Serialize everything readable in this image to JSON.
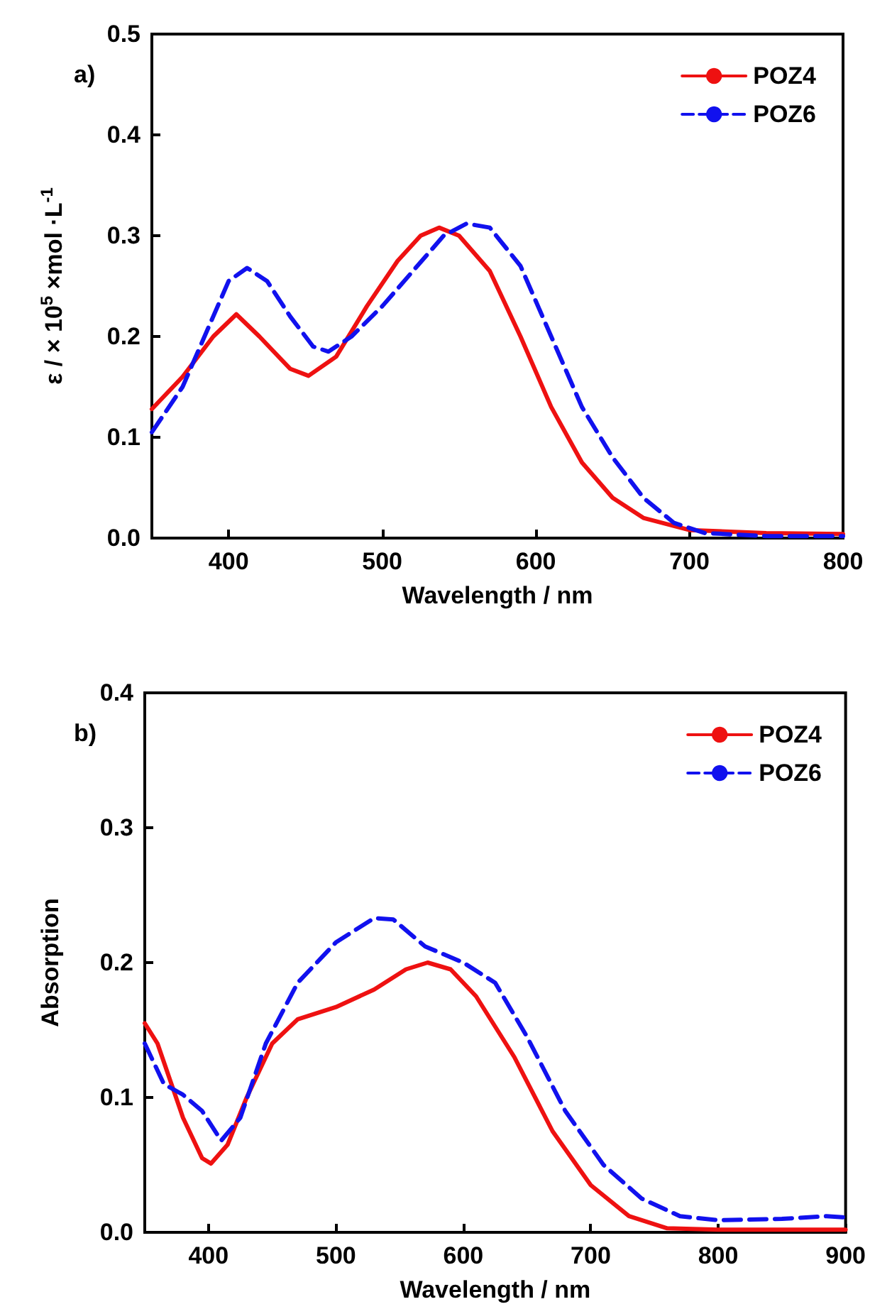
{
  "chart_data": [
    {
      "type": "line",
      "xlabel": "Wavelength / nm",
      "ylabel": "ε / × 10$^{5}$ ×mol ·L$^{-1}$",
      "annotations": [
        "a)"
      ],
      "xlim": [
        350,
        800
      ],
      "xticks": [
        400,
        500,
        600,
        700,
        800
      ],
      "ylim": [
        0,
        0.5
      ],
      "yticks": [
        {
          "value": 0,
          "label": "0.0"
        },
        {
          "value": 0.1,
          "label": "0.1"
        },
        {
          "value": 0.2,
          "label": "0.2"
        },
        {
          "value": 0.3,
          "label": "0.3"
        },
        {
          "value": 0.4,
          "label": "0.4"
        },
        {
          "value": 0.5,
          "label": "0.5"
        }
      ],
      "grid": false,
      "legend": "top right",
      "marker": "none",
      "series": [
        {
          "name": "POZ4",
          "color": "#ee1111",
          "line_style": "solid",
          "x": [
            350,
            370,
            390,
            405,
            420,
            440,
            452,
            470,
            490,
            510,
            525,
            537,
            550,
            570,
            590,
            610,
            630,
            650,
            670,
            700,
            750,
            800
          ],
          "values": [
            0.128,
            0.16,
            0.2,
            0.222,
            0.2,
            0.168,
            0.161,
            0.18,
            0.23,
            0.275,
            0.3,
            0.308,
            0.3,
            0.265,
            0.2,
            0.13,
            0.075,
            0.04,
            0.02,
            0.008,
            0.005,
            0.004
          ]
        },
        {
          "name": "POZ6",
          "color": "#1111ee",
          "line_style": "dashed",
          "x": [
            350,
            370,
            390,
            400,
            412,
            425,
            440,
            455,
            465,
            480,
            500,
            520,
            540,
            555,
            570,
            590,
            610,
            630,
            650,
            670,
            690,
            710,
            750,
            800
          ],
          "values": [
            0.105,
            0.15,
            0.22,
            0.255,
            0.268,
            0.255,
            0.22,
            0.19,
            0.185,
            0.2,
            0.23,
            0.265,
            0.3,
            0.312,
            0.308,
            0.27,
            0.2,
            0.13,
            0.08,
            0.04,
            0.015,
            0.005,
            0.002,
            0.002
          ]
        }
      ]
    },
    {
      "type": "line",
      "xlabel": "Wavelength / nm",
      "ylabel": "Absorption",
      "annotations": [
        "b)"
      ],
      "xlim": [
        350,
        900
      ],
      "xticks": [
        400,
        500,
        600,
        700,
        800,
        900
      ],
      "ylim": [
        0,
        0.4
      ],
      "yticks": [
        {
          "value": 0,
          "label": "0.0"
        },
        {
          "value": 0.1,
          "label": "0.1"
        },
        {
          "value": 0.2,
          "label": "0.2"
        },
        {
          "value": 0.3,
          "label": "0.3"
        },
        {
          "value": 0.4,
          "label": "0.4"
        }
      ],
      "grid": false,
      "legend": "top right",
      "marker": "none",
      "series": [
        {
          "name": "POZ4",
          "color": "#ee1111",
          "line_style": "solid",
          "x": [
            350,
            360,
            380,
            395,
            402,
            415,
            430,
            450,
            470,
            500,
            530,
            555,
            572,
            590,
            610,
            640,
            670,
            700,
            730,
            760,
            800,
            900
          ],
          "values": [
            0.155,
            0.14,
            0.085,
            0.055,
            0.051,
            0.065,
            0.1,
            0.14,
            0.158,
            0.167,
            0.18,
            0.195,
            0.2,
            0.195,
            0.175,
            0.13,
            0.075,
            0.035,
            0.012,
            0.003,
            0.002,
            0.002
          ]
        },
        {
          "name": "POZ6",
          "color": "#1111ee",
          "line_style": "dashed",
          "x": [
            350,
            365,
            380,
            395,
            410,
            425,
            445,
            470,
            500,
            530,
            545,
            570,
            600,
            625,
            650,
            680,
            710,
            740,
            770,
            800,
            850,
            885,
            900
          ],
          "values": [
            0.14,
            0.11,
            0.102,
            0.09,
            0.068,
            0.085,
            0.14,
            0.185,
            0.215,
            0.233,
            0.232,
            0.212,
            0.2,
            0.185,
            0.145,
            0.09,
            0.05,
            0.025,
            0.012,
            0.009,
            0.01,
            0.012,
            0.011
          ]
        }
      ]
    }
  ]
}
